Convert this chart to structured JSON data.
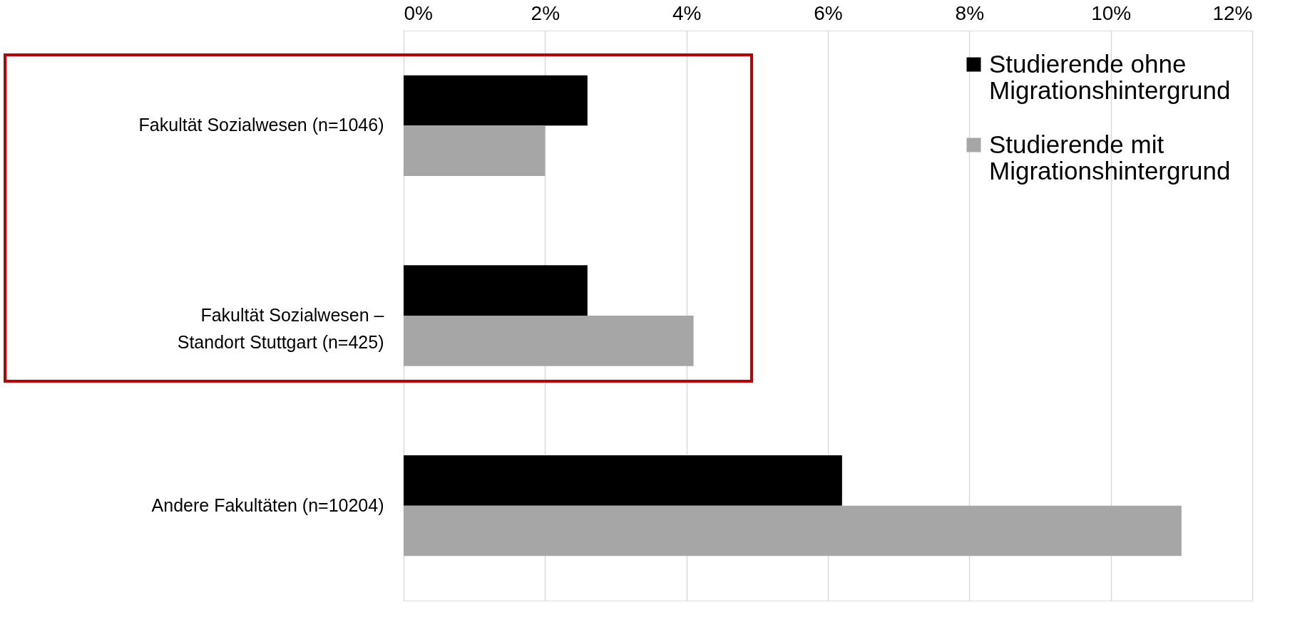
{
  "chart_data": {
    "type": "bar",
    "orientation": "horizontal",
    "categories": [
      "Fakultät Sozialwesen (n=1046)",
      "Fakultät Sozialwesen –\nStandort Stuttgart (n=425)",
      "Andere Fakultäten (n=10204)"
    ],
    "series": [
      {
        "name": "Studierende ohne\nMigrationshintergrund",
        "color": "#000000",
        "values": [
          2.6,
          2.6,
          6.2
        ]
      },
      {
        "name": "Studierende mit\nMigrationshintergrund",
        "color": "#a6a6a6",
        "values": [
          2.0,
          4.1,
          11.0
        ]
      }
    ],
    "xlim": [
      0,
      12
    ],
    "xticks": [
      {
        "value": 0,
        "label": "0%"
      },
      {
        "value": 2,
        "label": "2%"
      },
      {
        "value": 4,
        "label": "4%"
      },
      {
        "value": 6,
        "label": "6%"
      },
      {
        "value": 8,
        "label": "8%"
      },
      {
        "value": 10,
        "label": "10%"
      },
      {
        "value": 12,
        "label": "12%"
      }
    ],
    "grid": "x",
    "legend": "top right"
  }
}
